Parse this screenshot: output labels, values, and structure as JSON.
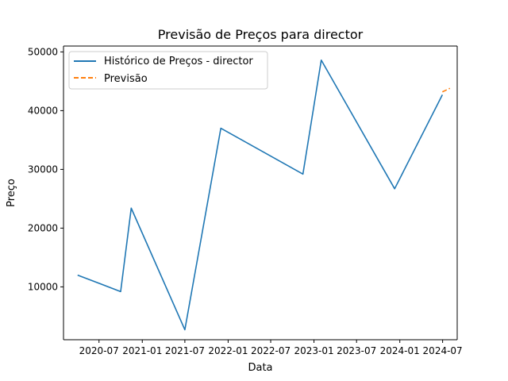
{
  "chart_data": {
    "type": "line",
    "title": "Previsão de Preços para director",
    "xlabel": "Data",
    "ylabel": "Preço",
    "xlim": [
      "2020-02-01",
      "2024-09-01"
    ],
    "ylim": [
      1000,
      51000
    ],
    "x_ticks": [
      "2020-07-01",
      "2021-01-01",
      "2021-07-01",
      "2022-01-01",
      "2022-07-01",
      "2023-01-01",
      "2023-07-01",
      "2024-01-01",
      "2024-07-01"
    ],
    "x_tick_labels": [
      "2020-07",
      "2021-01",
      "2021-07",
      "2022-01",
      "2022-07",
      "2023-01",
      "2023-07",
      "2024-01",
      "2024-07"
    ],
    "y_ticks": [
      10000,
      20000,
      30000,
      40000,
      50000
    ],
    "y_tick_labels": [
      "10000",
      "20000",
      "30000",
      "40000",
      "50000"
    ],
    "grid": false,
    "legend_position": "top-left",
    "series": [
      {
        "name": "Histórico de Preços - director",
        "style": "solid",
        "color": "#1f77b4",
        "x": [
          "2020-04-01",
          "2020-10-01",
          "2020-11-15",
          "2021-07-01",
          "2021-12-01",
          "2022-11-15",
          "2023-02-01",
          "2023-12-10",
          "2024-06-30"
        ],
        "y": [
          12000,
          9200,
          23400,
          2700,
          37000,
          29200,
          48600,
          26700,
          42700
        ]
      },
      {
        "name": "Previsão",
        "style": "dashed",
        "color": "#ff7f0e",
        "x": [
          "2024-06-30",
          "2024-08-01"
        ],
        "y": [
          43200,
          43800
        ]
      }
    ]
  }
}
